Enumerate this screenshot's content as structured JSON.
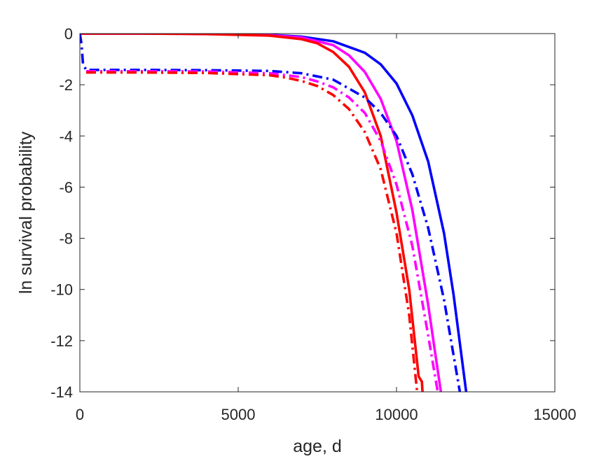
{
  "chart_data": {
    "type": "line",
    "title": "",
    "xlabel": "age, d",
    "ylabel": "ln survival probability",
    "xlim": [
      0,
      15000
    ],
    "ylim": [
      -14,
      0
    ],
    "xticks": [
      0,
      5000,
      10000,
      15000
    ],
    "yticks": [
      0,
      -2,
      -4,
      -6,
      -8,
      -10,
      -12,
      -14
    ],
    "grid": false,
    "legend": "none",
    "series": [
      {
        "color": "#0000ff",
        "dash": "solid",
        "x": [
          0,
          2000,
          4000,
          6000,
          7000,
          8000,
          9000,
          9500,
          10000,
          10500,
          11000,
          11500,
          11800,
          12000,
          12200
        ],
        "y": [
          0,
          0,
          -0.01,
          -0.05,
          -0.12,
          -0.3,
          -0.75,
          -1.2,
          -1.95,
          -3.2,
          -5.0,
          -7.8,
          -10.2,
          -12.1,
          -14
        ]
      },
      {
        "color": "#ff00ff",
        "dash": "solid",
        "x": [
          0,
          2000,
          4000,
          6000,
          7000,
          8000,
          8500,
          9000,
          9500,
          10000,
          10500,
          11000,
          11200,
          11400
        ],
        "y": [
          0,
          0,
          -0.01,
          -0.06,
          -0.15,
          -0.45,
          -0.85,
          -1.5,
          -2.55,
          -4.2,
          -6.9,
          -10.6,
          -12.3,
          -14
        ]
      },
      {
        "color": "#ff0000",
        "dash": "solid",
        "x": [
          0,
          2000,
          4000,
          6000,
          7000,
          7500,
          8000,
          8500,
          9000,
          9500,
          10000,
          10400,
          10700,
          10800,
          10820
        ],
        "y": [
          0,
          0,
          -0.02,
          -0.08,
          -0.22,
          -0.38,
          -0.72,
          -1.3,
          -2.3,
          -4.0,
          -7.0,
          -10.0,
          -13.4,
          -13.6,
          -14
        ]
      },
      {
        "color": "#0000ff",
        "dash": "dashdot",
        "x": [
          0,
          50,
          100,
          200,
          2000,
          4000,
          6000,
          7000,
          8000,
          9000,
          9500,
          10000,
          10500,
          11000,
          11500,
          12000
        ],
        "y": [
          0,
          -0.4,
          -1.2,
          -1.42,
          -1.42,
          -1.43,
          -1.46,
          -1.55,
          -1.8,
          -2.5,
          -3.1,
          -4.0,
          -5.5,
          -7.6,
          -10.4,
          -14
        ]
      },
      {
        "color": "#ff00ff",
        "dash": "dashdot",
        "x": [
          200,
          2000,
          4000,
          6000,
          7000,
          7500,
          8000,
          8500,
          9000,
          9500,
          10000,
          10500,
          11000,
          11300
        ],
        "y": [
          -1.47,
          -1.47,
          -1.48,
          -1.55,
          -1.7,
          -1.87,
          -2.1,
          -2.5,
          -3.1,
          -4.2,
          -5.9,
          -8.3,
          -11.8,
          -14
        ]
      },
      {
        "color": "#ff0000",
        "dash": "dashdot",
        "x": [
          200,
          2000,
          4000,
          6000,
          6500,
          7000,
          7500,
          8000,
          8500,
          9000,
          9500,
          10000,
          10400,
          10650
        ],
        "y": [
          -1.52,
          -1.52,
          -1.54,
          -1.63,
          -1.72,
          -1.85,
          -2.05,
          -2.4,
          -2.95,
          -3.85,
          -5.3,
          -7.8,
          -11.0,
          -14
        ]
      }
    ]
  }
}
